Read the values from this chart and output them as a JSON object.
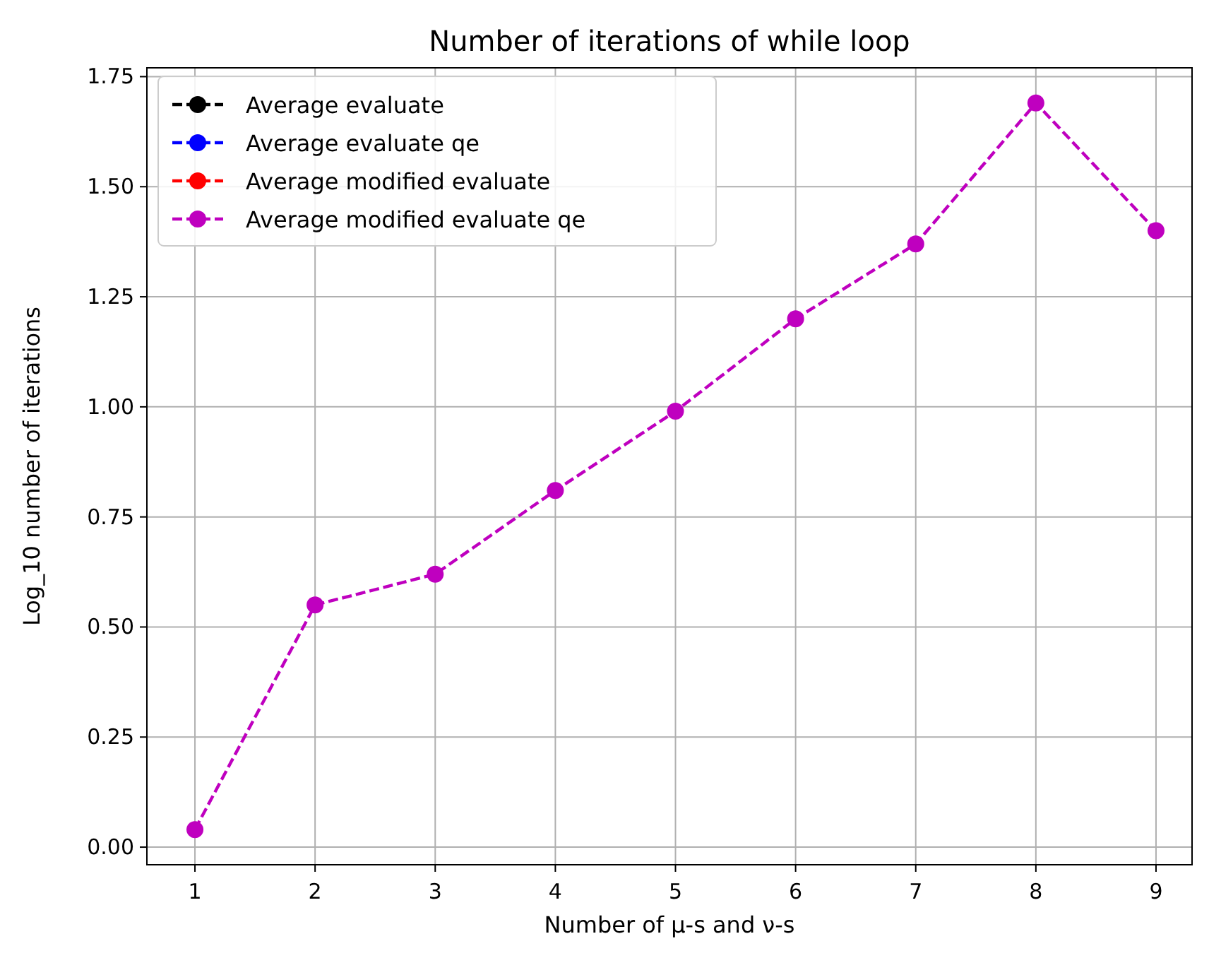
{
  "chart_data": {
    "type": "line",
    "title": "Number of iterations of while loop",
    "xlabel": "Number of μ-s and ν-s",
    "ylabel": "Log_10 number of iterations",
    "x": [
      1,
      2,
      3,
      4,
      5,
      6,
      7,
      8,
      9
    ],
    "series": [
      {
        "name": "Average evaluate",
        "color": "#000000",
        "values": [
          null,
          null,
          null,
          null,
          null,
          null,
          null,
          null,
          null
        ]
      },
      {
        "name": "Average evaluate qe",
        "color": "#0000ff",
        "values": [
          null,
          null,
          null,
          null,
          null,
          null,
          null,
          null,
          null
        ]
      },
      {
        "name": "Average modified evaluate",
        "color": "#ff0000",
        "values": [
          null,
          null,
          null,
          null,
          null,
          null,
          null,
          null,
          null
        ]
      },
      {
        "name": "Average modified evaluate qe",
        "color": "#bf00bf",
        "values": [
          0.04,
          0.55,
          0.62,
          0.81,
          0.99,
          1.2,
          1.37,
          1.69,
          1.4
        ]
      }
    ],
    "xlim": [
      0.6,
      9.3
    ],
    "ylim": [
      -0.04,
      1.77
    ],
    "xticks": [
      1,
      2,
      3,
      4,
      5,
      6,
      7,
      8,
      9
    ],
    "yticks": [
      {
        "value": 0,
        "label": "0.00"
      },
      {
        "value": 0.25,
        "label": "0.25"
      },
      {
        "value": 0.5,
        "label": "0.50"
      },
      {
        "value": 0.75,
        "label": "0.75"
      },
      {
        "value": 1,
        "label": "1.00"
      },
      {
        "value": 1.25,
        "label": "1.25"
      },
      {
        "value": 1.5,
        "label": "1.50"
      },
      {
        "value": 1.75,
        "label": "1.75"
      }
    ],
    "grid": true,
    "legend": "top left",
    "marker": "circle",
    "line_style": "dashed"
  }
}
